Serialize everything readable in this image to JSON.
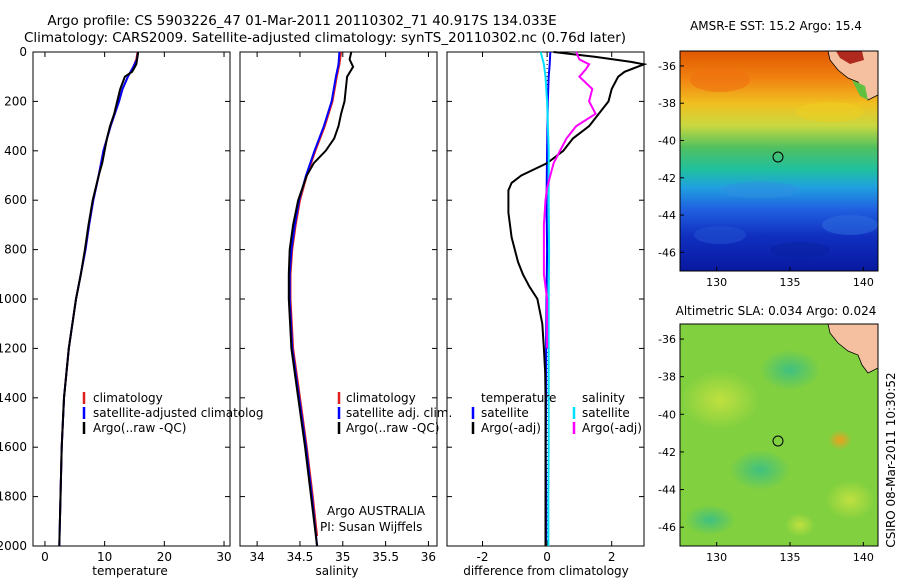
{
  "header": {
    "title_line1": "Argo profile: CS 5903226_47 01-Mar-2011 20110302_71 40.917S 134.033E",
    "title_line2": "Climatology: CARS2009. Satellite-adjusted climatology: synTS_20110302.nc (0.76d later)"
  },
  "panels": {
    "temperature": {
      "xlabel": "temperature",
      "xticks": [
        "0",
        "10",
        "20",
        "30"
      ],
      "legend": [
        "climatology",
        "satellite-adjusted climatolog",
        "Argo(..raw -QC)"
      ]
    },
    "salinity": {
      "xlabel": "salinity",
      "xticks": [
        "34",
        "34.5",
        "35",
        "35.5",
        "36"
      ],
      "legend": [
        "climatology",
        "satellite adj. clim.",
        "Argo(..raw -QC)"
      ],
      "note_line1": "Argo AUSTRALIA",
      "note_line2": "PI: Susan Wijffels"
    },
    "difference": {
      "xlabel": "difference from climatology",
      "xticks": [
        "-2",
        "0",
        "2"
      ],
      "legend_left_title": "temperature",
      "legend_left": [
        "satellite",
        "Argo(-adj)"
      ],
      "legend_right_title": "salinity",
      "legend_right": [
        "satellite",
        "Argo(-adj)"
      ]
    },
    "depth_ticks": [
      "0",
      "200",
      "400",
      "600",
      "800",
      "1000",
      "1200",
      "1400",
      "1600",
      "1800",
      "2000"
    ]
  },
  "maps": {
    "sst_title": "AMSR-E SST: 15.2 Argo: 15.4",
    "sla_title": "Altimetric SLA: 0.034 Argo: 0.024",
    "yticks": [
      "-36",
      "-38",
      "-40",
      "-42",
      "-44",
      "-46"
    ],
    "xticks": [
      "130",
      "135",
      "140"
    ],
    "credit": "CSIRO 08-Mar-2011 10:30:52"
  },
  "colors": {
    "climatology": "#e02020",
    "satellite": "#0000ff",
    "argo": "#000000",
    "sal_satellite": "#00e0ff",
    "sal_argo": "#ff00ff",
    "land": "#f4c0a0"
  },
  "chart_data": [
    {
      "type": "line",
      "xlabel": "temperature",
      "ylabel": "",
      "xlim": [
        -2,
        31
      ],
      "ylim": [
        2000,
        0
      ],
      "series": [
        {
          "name": "climatology",
          "color": "red",
          "depth": [
            0,
            30,
            60,
            100,
            150,
            200,
            300,
            400,
            500,
            600,
            700,
            800,
            900,
            1000,
            1200,
            1400,
            1600,
            1800,
            1900
          ],
          "values": [
            15.5,
            15.3,
            14.8,
            13.9,
            13.0,
            12.4,
            11.0,
            9.8,
            9.0,
            8.1,
            7.4,
            6.8,
            6.0,
            5.2,
            4.0,
            3.2,
            2.8,
            2.6,
            2.5
          ]
        },
        {
          "name": "satellite-adjusted climatolog",
          "color": "blue",
          "depth": [
            0,
            30,
            60,
            100,
            150,
            200,
            300,
            400,
            500,
            600,
            700,
            800,
            900,
            1000,
            1200,
            1400,
            1600,
            1800,
            2000
          ],
          "values": [
            15.6,
            15.4,
            14.8,
            13.9,
            13.0,
            12.4,
            11.0,
            9.8,
            9.0,
            8.1,
            7.4,
            6.8,
            6.0,
            5.2,
            4.0,
            3.2,
            2.8,
            2.6,
            2.4
          ]
        },
        {
          "name": "Argo(..raw -QC)",
          "color": "black",
          "depth": [
            0,
            20,
            50,
            80,
            100,
            150,
            200,
            250,
            300,
            350,
            400,
            450,
            500,
            600,
            700,
            800,
            900,
            1000,
            1200,
            1400,
            1600,
            1800,
            2000
          ],
          "values": [
            15.6,
            15.5,
            15.3,
            14.6,
            13.4,
            12.6,
            12.1,
            11.6,
            10.9,
            10.4,
            10.0,
            9.6,
            9.0,
            8.0,
            7.3,
            6.7,
            6.0,
            5.2,
            4.0,
            3.2,
            2.8,
            2.6,
            2.4
          ]
        }
      ]
    },
    {
      "type": "line",
      "xlabel": "salinity",
      "ylabel": "",
      "xlim": [
        33.8,
        36.1
      ],
      "ylim": [
        2000,
        0
      ],
      "series": [
        {
          "name": "climatology",
          "color": "red",
          "depth": [
            0,
            50,
            100,
            200,
            300,
            400,
            500,
            600,
            700,
            800,
            900,
            1000,
            1200,
            1400,
            1600,
            1800,
            1960
          ],
          "values": [
            34.98,
            34.96,
            34.93,
            34.88,
            34.79,
            34.68,
            34.58,
            34.5,
            34.45,
            34.41,
            34.39,
            34.39,
            34.42,
            34.5,
            34.58,
            34.65,
            34.7
          ]
        },
        {
          "name": "satellite adj. clim.",
          "color": "blue",
          "depth": [
            0,
            50,
            100,
            200,
            300,
            400,
            500,
            600,
            700,
            800,
            900,
            1000,
            1200,
            1400,
            1600,
            1800,
            2000
          ],
          "values": [
            34.96,
            34.95,
            34.92,
            34.87,
            34.78,
            34.67,
            34.57,
            34.49,
            34.44,
            34.4,
            34.38,
            34.38,
            34.41,
            34.49,
            34.57,
            34.64,
            34.7
          ]
        },
        {
          "name": "Argo(..raw -QC)",
          "color": "black",
          "depth": [
            0,
            30,
            60,
            100,
            200,
            250,
            300,
            350,
            400,
            450,
            500,
            600,
            700,
            800,
            900,
            1000,
            1200,
            1400,
            1600,
            1800,
            2000
          ],
          "values": [
            35.1,
            35.08,
            35.12,
            35.05,
            35.02,
            34.98,
            34.95,
            34.9,
            34.8,
            34.66,
            34.58,
            34.48,
            34.42,
            34.38,
            34.37,
            34.37,
            34.4,
            34.48,
            34.56,
            34.63,
            34.7
          ]
        }
      ]
    },
    {
      "type": "line",
      "xlabel": "difference from climatology",
      "ylabel": "",
      "xlim": [
        -3.1,
        3.0
      ],
      "ylim": [
        2000,
        0
      ],
      "series": [
        {
          "name": "satellite",
          "group": "temperature",
          "color": "blue",
          "depth": [
            0,
            50,
            100,
            200,
            400,
            600,
            800,
            1000,
            1200,
            1400,
            1600,
            1800,
            1980
          ],
          "values": [
            0.1,
            0.08,
            0.05,
            0.02,
            0.0,
            -0.02,
            0.0,
            -0.02,
            -0.03,
            -0.03,
            -0.04,
            -0.03,
            -0.03
          ]
        },
        {
          "name": "Argo(-adj)",
          "group": "temperature",
          "color": "black",
          "depth": [
            0,
            20,
            40,
            50,
            60,
            80,
            100,
            150,
            200,
            250,
            300,
            350,
            400,
            450,
            500,
            530,
            560,
            600,
            650,
            700,
            750,
            800,
            850,
            900,
            950,
            1000,
            1100,
            1200,
            1300,
            1400,
            1600,
            1800,
            2000
          ],
          "values": [
            0.2,
            1.5,
            2.6,
            3.0,
            2.8,
            2.4,
            2.2,
            2.0,
            1.9,
            1.6,
            1.3,
            0.8,
            0.5,
            0.0,
            -0.8,
            -1.1,
            -1.2,
            -1.2,
            -1.2,
            -1.15,
            -1.1,
            -1.0,
            -0.9,
            -0.75,
            -0.55,
            -0.3,
            -0.15,
            -0.1,
            -0.06,
            -0.05,
            -0.05,
            -0.05,
            -0.05
          ]
        },
        {
          "name": "satellite",
          "group": "salinity",
          "color": "cyan",
          "depth": [
            0,
            50,
            100,
            200,
            400,
            600,
            800,
            1000,
            1200,
            1400,
            1600,
            1800,
            2000
          ],
          "values": [
            -0.2,
            -0.1,
            -0.05,
            0.0,
            0.05,
            0.05,
            0.06,
            0.05,
            0.05,
            0.05,
            0.05,
            0.04,
            0.04
          ]
        },
        {
          "name": "Argo(-adj)",
          "group": "salinity",
          "color": "magenta",
          "depth": [
            0,
            30,
            50,
            70,
            100,
            150,
            200,
            250,
            300,
            350,
            400,
            450,
            500,
            550,
            600,
            700,
            800,
            900,
            1000,
            1100,
            1200
          ],
          "values": [
            0.9,
            1.0,
            1.3,
            1.2,
            1.0,
            1.4,
            1.3,
            1.5,
            0.9,
            0.6,
            0.4,
            0.2,
            0.1,
            0.0,
            -0.05,
            -0.1,
            -0.1,
            -0.1,
            0.0,
            0.0,
            0.0
          ]
        }
      ]
    },
    {
      "type": "heatmap",
      "title": "AMSR-E SST: 15.2 Argo: 15.4",
      "xlim": [
        127.5,
        141
      ],
      "ylim": [
        -47,
        -35.2
      ],
      "note": "sea surface temperature field; red north, grading to blue south; argo position circle at 134.033E 40.917S",
      "marker": {
        "lon": 134.033,
        "lat": -40.917
      }
    },
    {
      "type": "heatmap",
      "title": "Altimetric SLA: 0.034 Argo: 0.024",
      "xlim": [
        127.5,
        141
      ],
      "ylim": [
        -47,
        -35.2
      ],
      "note": "sea level anomaly field, mostly green",
      "marker": {
        "lon": 134.033,
        "lat": -40.917
      }
    }
  ]
}
